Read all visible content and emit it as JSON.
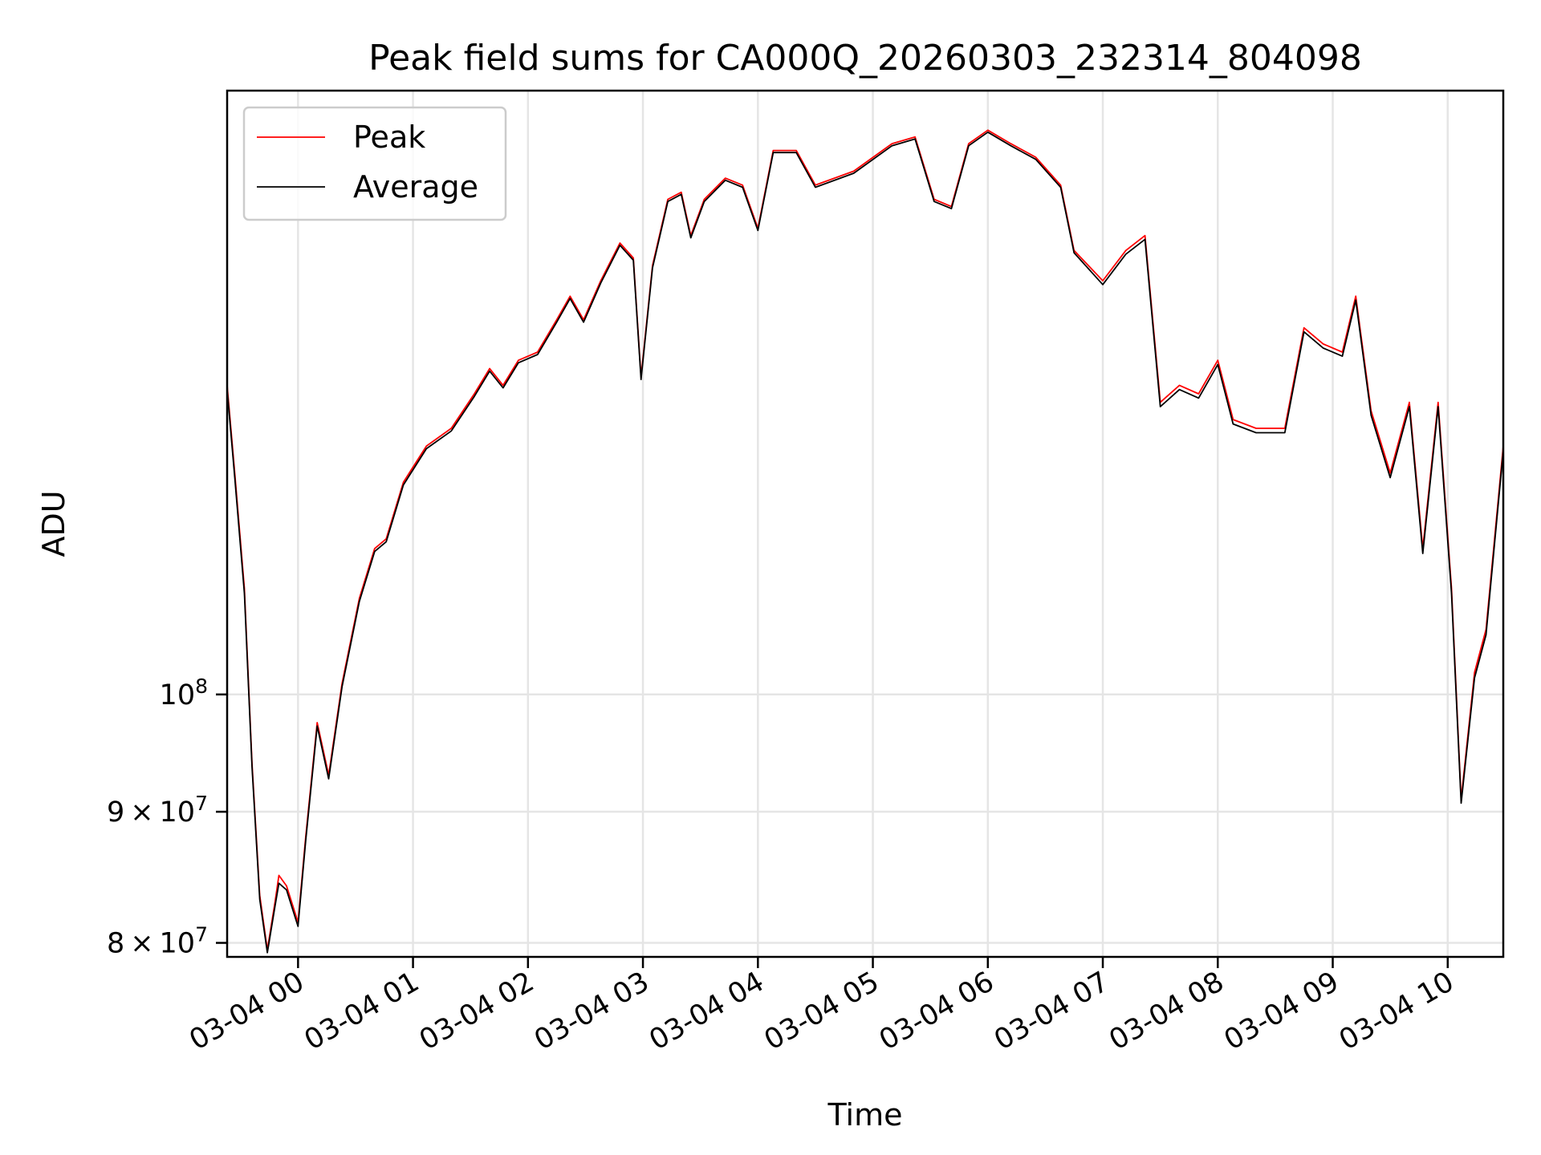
{
  "chart_data": {
    "type": "line",
    "title": "Peak field sums for CA000Q_20260303_232314_804098",
    "xlabel": "Time",
    "ylabel": "ADU",
    "yscale": "log",
    "ylim": [
      79000000,
      172000000
    ],
    "xlim": [
      "2026-03-03 23:23",
      "2026-03-04 10:29"
    ],
    "grid": true,
    "legend_position": "top-left",
    "x_ticks": [
      "03-04 00",
      "03-04 01",
      "03-04 02",
      "03-04 03",
      "03-04 04",
      "03-04 05",
      "03-04 06",
      "03-04 07",
      "03-04 08",
      "03-04 09",
      "03-04 10"
    ],
    "y_ticks": [
      {
        "value": 80000000,
        "mantissa": "8",
        "base": "10",
        "exp": "7"
      },
      {
        "value": 90000000,
        "mantissa": "9",
        "base": "10",
        "exp": "7"
      },
      {
        "value": 100000000,
        "mantissa": "",
        "base": "10",
        "exp": "8"
      }
    ],
    "series": [
      {
        "name": "Peak",
        "color": "#ff0000",
        "points": [
          [
            "2026-03-03 23:23",
            132000000.0
          ],
          [
            "2026-03-03 23:27",
            122000000.0
          ],
          [
            "2026-03-03 23:32",
            110000000.0
          ],
          [
            "2026-03-03 23:36",
            94000000.0
          ],
          [
            "2026-03-03 23:40",
            83500000.0
          ],
          [
            "2026-03-03 23:44",
            79500000.0
          ],
          [
            "2026-03-03 23:48",
            83000000.0
          ],
          [
            "2026-03-03 23:50",
            85000000.0
          ],
          [
            "2026-03-03 23:54",
            84200000.0
          ],
          [
            "2026-03-04 00:00",
            81500000.0
          ],
          [
            "2026-03-04 00:04",
            88000000.0
          ],
          [
            "2026-03-04 00:10",
            97500000.0
          ],
          [
            "2026-03-04 00:16",
            93000000.0
          ],
          [
            "2026-03-04 00:23",
            101000000.0
          ],
          [
            "2026-03-04 00:32",
            109000000.0
          ],
          [
            "2026-03-04 00:40",
            114000000.0
          ],
          [
            "2026-03-04 00:46",
            115000000.0
          ],
          [
            "2026-03-04 00:55",
            121000000.0
          ],
          [
            "2026-03-04 01:07",
            125000000.0
          ],
          [
            "2026-03-04 01:20",
            127000000.0
          ],
          [
            "2026-03-04 01:32",
            131000000.0
          ],
          [
            "2026-03-04 01:40",
            134000000.0
          ],
          [
            "2026-03-04 01:47",
            132000000.0
          ],
          [
            "2026-03-04 01:55",
            135000000.0
          ],
          [
            "2026-03-04 02:05",
            136000000.0
          ],
          [
            "2026-03-04 02:15",
            140000000.0
          ],
          [
            "2026-03-04 02:22",
            143000000.0
          ],
          [
            "2026-03-04 02:29",
            140000000.0
          ],
          [
            "2026-03-04 02:38",
            145000000.0
          ],
          [
            "2026-03-04 02:48",
            150000000.0
          ],
          [
            "2026-03-04 02:55",
            148000000.0
          ],
          [
            "2026-03-04 02:59",
            133000000.0
          ],
          [
            "2026-03-04 03:05",
            147000000.0
          ],
          [
            "2026-03-04 03:13",
            156000000.0
          ],
          [
            "2026-03-04 03:20",
            157000000.0
          ],
          [
            "2026-03-04 03:25",
            151000000.0
          ],
          [
            "2026-03-04 03:32",
            156000000.0
          ],
          [
            "2026-03-04 03:43",
            159000000.0
          ],
          [
            "2026-03-04 03:52",
            158000000.0
          ],
          [
            "2026-03-04 04:00",
            152000000.0
          ],
          [
            "2026-03-04 04:08",
            163000000.0
          ],
          [
            "2026-03-04 04:20",
            163000000.0
          ],
          [
            "2026-03-04 04:30",
            158000000.0
          ],
          [
            "2026-03-04 04:50",
            160000000.0
          ],
          [
            "2026-03-04 05:10",
            164000000.0
          ],
          [
            "2026-03-04 05:22",
            165000000.0
          ],
          [
            "2026-03-04 05:32",
            156000000.0
          ],
          [
            "2026-03-04 05:41",
            155000000.0
          ],
          [
            "2026-03-04 05:50",
            164000000.0
          ],
          [
            "2026-03-04 06:00",
            166000000.0
          ],
          [
            "2026-03-04 06:12",
            164000000.0
          ],
          [
            "2026-03-04 06:25",
            162000000.0
          ],
          [
            "2026-03-04 06:38",
            158000000.0
          ],
          [
            "2026-03-04 06:45",
            149000000.0
          ],
          [
            "2026-03-04 07:00",
            145000000.0
          ],
          [
            "2026-03-04 07:12",
            149000000.0
          ],
          [
            "2026-03-04 07:22",
            151000000.0
          ],
          [
            "2026-03-04 07:30",
            130000000.0
          ],
          [
            "2026-03-04 07:40",
            132000000.0
          ],
          [
            "2026-03-04 07:50",
            131000000.0
          ],
          [
            "2026-03-04 08:00",
            135000000.0
          ],
          [
            "2026-03-04 08:08",
            128000000.0
          ],
          [
            "2026-03-04 08:20",
            127000000.0
          ],
          [
            "2026-03-04 08:35",
            127000000.0
          ],
          [
            "2026-03-04 08:45",
            139000000.0
          ],
          [
            "2026-03-04 08:55",
            137000000.0
          ],
          [
            "2026-03-04 09:05",
            136000000.0
          ],
          [
            "2026-03-04 09:12",
            143000000.0
          ],
          [
            "2026-03-04 09:20",
            129000000.0
          ],
          [
            "2026-03-04 09:30",
            122000000.0
          ],
          [
            "2026-03-04 09:40",
            130000000.0
          ],
          [
            "2026-03-04 09:47",
            114000000.0
          ],
          [
            "2026-03-04 09:55",
            130000000.0
          ],
          [
            "2026-03-04 10:02",
            110000000.0
          ],
          [
            "2026-03-04 10:07",
            91000000.0
          ],
          [
            "2026-03-04 10:14",
            102000000.0
          ],
          [
            "2026-03-04 10:20",
            106000000.0
          ],
          [
            "2026-03-04 10:29",
            125000000.0
          ]
        ]
      },
      {
        "name": "Average",
        "color": "#000000",
        "points": [
          [
            "2026-03-03 23:23",
            131500000.0
          ],
          [
            "2026-03-03 23:27",
            121500000.0
          ],
          [
            "2026-03-03 23:32",
            109500000.0
          ],
          [
            "2026-03-03 23:36",
            93700000.0
          ],
          [
            "2026-03-03 23:40",
            83200000.0
          ],
          [
            "2026-03-03 23:44",
            79300000.0
          ],
          [
            "2026-03-03 23:48",
            82700000.0
          ],
          [
            "2026-03-03 23:50",
            84400000.0
          ],
          [
            "2026-03-03 23:54",
            83900000.0
          ],
          [
            "2026-03-04 00:00",
            81200000.0
          ],
          [
            "2026-03-04 00:04",
            87700000.0
          ],
          [
            "2026-03-04 00:10",
            97200000.0
          ],
          [
            "2026-03-04 00:16",
            92700000.0
          ],
          [
            "2026-03-04 00:23",
            100700000.0
          ],
          [
            "2026-03-04 00:32",
            108700000.0
          ],
          [
            "2026-03-04 00:40",
            113700000.0
          ],
          [
            "2026-03-04 00:46",
            114700000.0
          ],
          [
            "2026-03-04 00:55",
            120700000.0
          ],
          [
            "2026-03-04 01:07",
            124700000.0
          ],
          [
            "2026-03-04 01:20",
            126700000.0
          ],
          [
            "2026-03-04 01:32",
            130700000.0
          ],
          [
            "2026-03-04 01:40",
            133700000.0
          ],
          [
            "2026-03-04 01:47",
            131700000.0
          ],
          [
            "2026-03-04 01:55",
            134700000.0
          ],
          [
            "2026-03-04 02:05",
            135700000.0
          ],
          [
            "2026-03-04 02:15",
            139700000.0
          ],
          [
            "2026-03-04 02:22",
            142700000.0
          ],
          [
            "2026-03-04 02:29",
            139700000.0
          ],
          [
            "2026-03-04 02:38",
            144700000.0
          ],
          [
            "2026-03-04 02:48",
            149700000.0
          ],
          [
            "2026-03-04 02:55",
            147700000.0
          ],
          [
            "2026-03-04 02:59",
            132700000.0
          ],
          [
            "2026-03-04 03:05",
            146700000.0
          ],
          [
            "2026-03-04 03:13",
            155700000.0
          ],
          [
            "2026-03-04 03:20",
            156700000.0
          ],
          [
            "2026-03-04 03:25",
            150700000.0
          ],
          [
            "2026-03-04 03:32",
            155700000.0
          ],
          [
            "2026-03-04 03:43",
            158700000.0
          ],
          [
            "2026-03-04 03:52",
            157700000.0
          ],
          [
            "2026-03-04 04:00",
            151700000.0
          ],
          [
            "2026-03-04 04:08",
            162700000.0
          ],
          [
            "2026-03-04 04:20",
            162700000.0
          ],
          [
            "2026-03-04 04:30",
            157700000.0
          ],
          [
            "2026-03-04 04:50",
            159700000.0
          ],
          [
            "2026-03-04 05:10",
            163700000.0
          ],
          [
            "2026-03-04 05:22",
            164700000.0
          ],
          [
            "2026-03-04 05:32",
            155700000.0
          ],
          [
            "2026-03-04 05:41",
            154700000.0
          ],
          [
            "2026-03-04 05:50",
            163700000.0
          ],
          [
            "2026-03-04 06:00",
            165700000.0
          ],
          [
            "2026-03-04 06:12",
            163700000.0
          ],
          [
            "2026-03-04 06:25",
            161700000.0
          ],
          [
            "2026-03-04 06:38",
            157700000.0
          ],
          [
            "2026-03-04 06:45",
            148700000.0
          ],
          [
            "2026-03-04 07:00",
            144500000.0
          ],
          [
            "2026-03-04 07:12",
            148500000.0
          ],
          [
            "2026-03-04 07:22",
            150500000.0
          ],
          [
            "2026-03-04 07:30",
            129500000.0
          ],
          [
            "2026-03-04 07:40",
            131500000.0
          ],
          [
            "2026-03-04 07:50",
            130500000.0
          ],
          [
            "2026-03-04 08:00",
            134500000.0
          ],
          [
            "2026-03-04 08:08",
            127500000.0
          ],
          [
            "2026-03-04 08:20",
            126500000.0
          ],
          [
            "2026-03-04 08:35",
            126500000.0
          ],
          [
            "2026-03-04 08:45",
            138500000.0
          ],
          [
            "2026-03-04 08:55",
            136500000.0
          ],
          [
            "2026-03-04 09:05",
            135500000.0
          ],
          [
            "2026-03-04 09:12",
            142500000.0
          ],
          [
            "2026-03-04 09:20",
            128500000.0
          ],
          [
            "2026-03-04 09:30",
            121500000.0
          ],
          [
            "2026-03-04 09:40",
            129500000.0
          ],
          [
            "2026-03-04 09:47",
            113500000.0
          ],
          [
            "2026-03-04 09:55",
            129500000.0
          ],
          [
            "2026-03-04 10:02",
            109500000.0
          ],
          [
            "2026-03-04 10:07",
            90700000.0
          ],
          [
            "2026-03-04 10:14",
            101500000.0
          ],
          [
            "2026-03-04 10:20",
            105500000.0
          ],
          [
            "2026-03-04 10:29",
            124500000.0
          ]
        ]
      }
    ]
  }
}
